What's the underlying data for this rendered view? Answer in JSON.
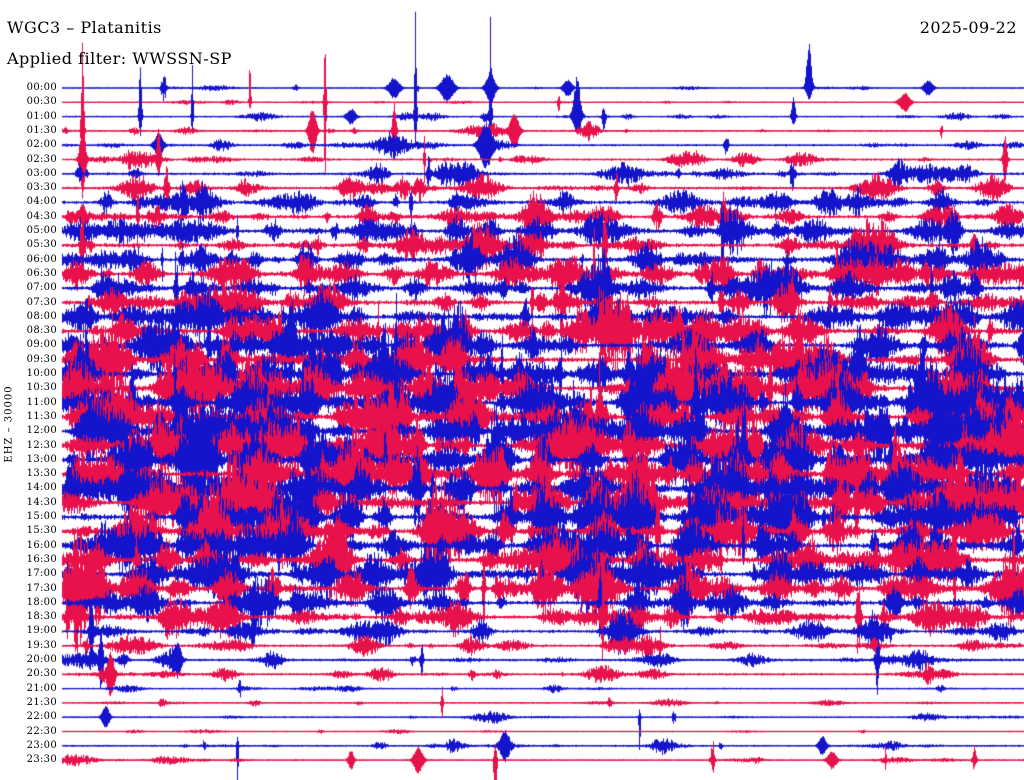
{
  "header": {
    "title": "WGC3 – Platanitis",
    "filter": "Applied filter: WWSSN-SP",
    "date": "2025-09-22"
  },
  "axis": {
    "channel_label": "EHZ – 30000"
  },
  "colors": {
    "blue": "#1414CC",
    "red": "#E8114B",
    "text": "#000000",
    "background": "#FFFFFF"
  },
  "chart_data": {
    "type": "line",
    "subtype": "helicorder-seismogram",
    "title": "WGC3 – Platanitis",
    "station": "WGC3",
    "site": "Platanitis",
    "channel": "EHZ",
    "amplitude_scale": 30000,
    "date": "2025-09-22",
    "filter": "WWSSN-SP",
    "row_interval_minutes": 30,
    "rows_per_day": 48,
    "legend": "alternating trace colors per half-hour row: blue then red",
    "rows": [
      {
        "t": "00:00",
        "c": "blue",
        "lv": 0.1,
        "ev": [
          [
            0.345,
            10,
            10,
            6
          ],
          [
            0.4,
            14,
            14,
            7
          ],
          [
            0.445,
            16,
            16,
            5
          ],
          [
            0.525,
            8,
            8,
            5
          ],
          [
            0.776,
            45,
            12,
            3
          ],
          [
            0.9,
            8,
            8,
            5
          ]
        ]
      },
      {
        "t": "00:30",
        "c": "red",
        "lv": 0.08,
        "ev": [
          [
            0.195,
            45,
            8,
            1
          ],
          [
            0.273,
            58,
            80,
            1.2
          ],
          [
            0.875,
            8,
            8,
            6
          ]
        ]
      },
      {
        "t": "01:00",
        "c": "blue",
        "lv": 0.16,
        "ev": [
          [
            0.081,
            55,
            20,
            1.5
          ],
          [
            0.135,
            60,
            20,
            1
          ],
          [
            0.3,
            8,
            8,
            5
          ],
          [
            0.367,
            116,
            28,
            1.2
          ],
          [
            0.445,
            108,
            30,
            1.2
          ],
          [
            0.535,
            40,
            18,
            4
          ],
          [
            0.76,
            22,
            10,
            2
          ]
        ]
      },
      {
        "t": "01:30",
        "c": "red",
        "lv": 0.18,
        "ev": [
          [
            0.021,
            95,
            60,
            1.5
          ],
          [
            0.26,
            25,
            25,
            4
          ],
          [
            0.345,
            30,
            30,
            2
          ],
          [
            0.47,
            18,
            18,
            5
          ]
        ]
      },
      {
        "t": "02:00",
        "c": "blue",
        "lv": 0.25,
        "ev": [
          [
            0.1,
            12,
            12,
            5
          ],
          [
            0.44,
            22,
            22,
            7
          ]
        ]
      },
      {
        "t": "02:30",
        "c": "red",
        "lv": 0.25,
        "ev": [
          [
            0.021,
            40,
            40,
            3
          ],
          [
            0.1,
            30,
            15,
            2
          ],
          [
            0.98,
            25,
            25,
            2
          ]
        ]
      },
      {
        "t": "03:00",
        "c": "blue",
        "lv": 0.35,
        "ev": []
      },
      {
        "t": "03:30",
        "c": "red",
        "lv": 0.38,
        "ev": []
      },
      {
        "t": "04:00",
        "c": "blue",
        "lv": 0.5,
        "ev": []
      },
      {
        "t": "04:30",
        "c": "red",
        "lv": 0.5,
        "ev": []
      },
      {
        "t": "05:00",
        "c": "blue",
        "lv": 0.55,
        "ev": []
      },
      {
        "t": "05:30",
        "c": "red",
        "lv": 0.55,
        "ev": []
      },
      {
        "t": "06:00",
        "c": "blue",
        "lv": 0.6,
        "ev": []
      },
      {
        "t": "06:30",
        "c": "red",
        "lv": 0.62,
        "ev": []
      },
      {
        "t": "07:00",
        "c": "blue",
        "lv": 0.65,
        "ev": []
      },
      {
        "t": "07:30",
        "c": "red",
        "lv": 0.65,
        "ev": []
      },
      {
        "t": "08:00",
        "c": "blue",
        "lv": 0.7,
        "ev": []
      },
      {
        "t": "08:30",
        "c": "red",
        "lv": 0.7,
        "ev": []
      },
      {
        "t": "09:00",
        "c": "blue",
        "lv": 0.75,
        "ev": []
      },
      {
        "t": "09:30",
        "c": "red",
        "lv": 0.75,
        "ev": []
      },
      {
        "t": "10:00",
        "c": "blue",
        "lv": 0.85,
        "ev": []
      },
      {
        "t": "10:30",
        "c": "red",
        "lv": 0.85,
        "ev": []
      },
      {
        "t": "11:00",
        "c": "blue",
        "lv": 0.88,
        "ev": []
      },
      {
        "t": "11:30",
        "c": "red",
        "lv": 0.88,
        "ev": []
      },
      {
        "t": "12:00",
        "c": "blue",
        "lv": 0.88,
        "ev": []
      },
      {
        "t": "12:30",
        "c": "red",
        "lv": 0.88,
        "ev": []
      },
      {
        "t": "13:00",
        "c": "blue",
        "lv": 0.85,
        "ev": []
      },
      {
        "t": "13:30",
        "c": "red",
        "lv": 0.85,
        "ev": []
      },
      {
        "t": "14:00",
        "c": "blue",
        "lv": 0.88,
        "ev": []
      },
      {
        "t": "14:30",
        "c": "red",
        "lv": 0.88,
        "ev": []
      },
      {
        "t": "15:00",
        "c": "blue",
        "lv": 0.85,
        "ev": []
      },
      {
        "t": "15:30",
        "c": "red",
        "lv": 0.82,
        "ev": []
      },
      {
        "t": "16:00",
        "c": "blue",
        "lv": 0.8,
        "ev": []
      },
      {
        "t": "16:30",
        "c": "red",
        "lv": 0.78,
        "ev": []
      },
      {
        "t": "17:00",
        "c": "blue",
        "lv": 0.75,
        "ev": []
      },
      {
        "t": "17:30",
        "c": "red",
        "lv": 0.72,
        "ev": []
      },
      {
        "t": "18:00",
        "c": "blue",
        "lv": 0.6,
        "ev": []
      },
      {
        "t": "18:30",
        "c": "red",
        "lv": 0.55,
        "ev": []
      },
      {
        "t": "19:00",
        "c": "blue",
        "lv": 0.42,
        "ev": [
          [
            0.03,
            30,
            30,
            2
          ]
        ]
      },
      {
        "t": "19:30",
        "c": "red",
        "lv": 0.35,
        "ev": []
      },
      {
        "t": "20:00",
        "c": "blue",
        "lv": 0.32,
        "ev": [
          [
            0.04,
            25,
            25,
            2
          ],
          [
            0.12,
            15,
            15,
            4
          ]
        ]
      },
      {
        "t": "20:30",
        "c": "red",
        "lv": 0.3,
        "ev": [
          [
            0.05,
            20,
            20,
            3
          ]
        ]
      },
      {
        "t": "21:00",
        "c": "blue",
        "lv": 0.12,
        "ev": []
      },
      {
        "t": "21:30",
        "c": "red",
        "lv": 0.1,
        "ev": []
      },
      {
        "t": "22:00",
        "c": "blue",
        "lv": 0.16,
        "ev": [
          [
            0.045,
            12,
            12,
            4
          ],
          [
            0.6,
            8,
            40,
            1
          ]
        ]
      },
      {
        "t": "22:30",
        "c": "red",
        "lv": 0.07,
        "ev": []
      },
      {
        "t": "23:00",
        "c": "blue",
        "lv": 0.18,
        "ev": [
          [
            0.182,
            10,
            55,
            1
          ],
          [
            0.46,
            14,
            14,
            5
          ],
          [
            0.79,
            10,
            10,
            4
          ]
        ]
      },
      {
        "t": "23:30",
        "c": "red",
        "lv": 0.14,
        "ev": [
          [
            0.3,
            10,
            10,
            3
          ],
          [
            0.37,
            14,
            14,
            5
          ],
          [
            0.45,
            16,
            60,
            1.5
          ],
          [
            0.8,
            9,
            9,
            5
          ]
        ]
      }
    ]
  }
}
